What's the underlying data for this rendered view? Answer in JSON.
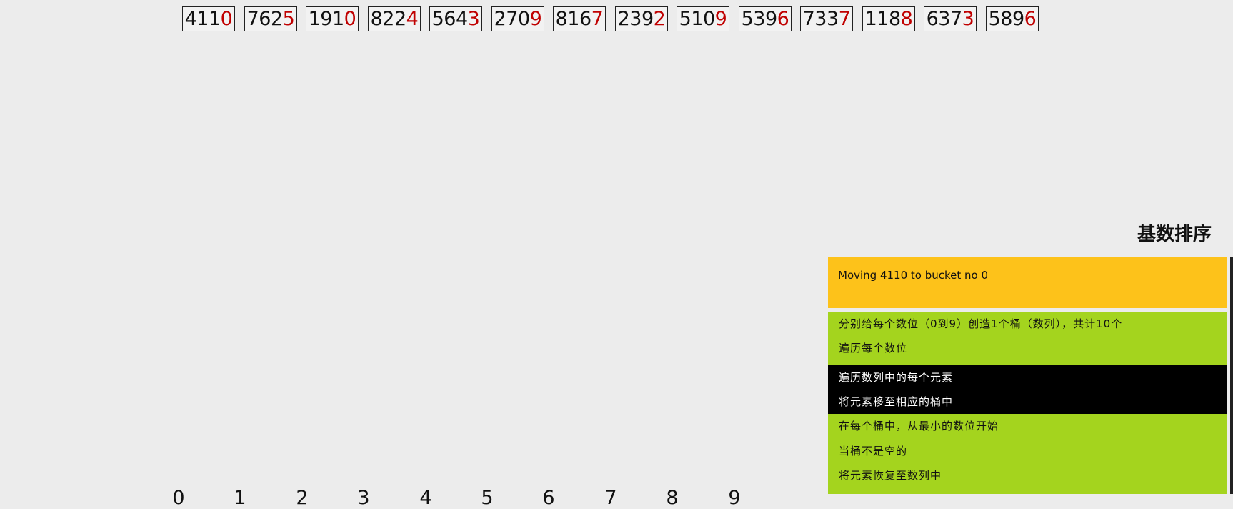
{
  "array": [
    {
      "prefix": "411",
      "digit": "0"
    },
    {
      "prefix": "762",
      "digit": "5"
    },
    {
      "prefix": "191",
      "digit": "0"
    },
    {
      "prefix": "822",
      "digit": "4"
    },
    {
      "prefix": "564",
      "digit": "3"
    },
    {
      "prefix": "270",
      "digit": "9"
    },
    {
      "prefix": "816",
      "digit": "7"
    },
    {
      "prefix": "239",
      "digit": "2"
    },
    {
      "prefix": "510",
      "digit": "9"
    },
    {
      "prefix": "539",
      "digit": "6"
    },
    {
      "prefix": "733",
      "digit": "7"
    },
    {
      "prefix": "118",
      "digit": "8"
    },
    {
      "prefix": "637",
      "digit": "3"
    },
    {
      "prefix": "589",
      "digit": "6"
    }
  ],
  "buckets": [
    "0",
    "1",
    "2",
    "3",
    "4",
    "5",
    "6",
    "7",
    "8",
    "9"
  ],
  "title": "基数排序",
  "status": "Moving 4110 to bucket no 0",
  "pseudocode": [
    {
      "text": "分别给每个数位（0到9）创造1个桶（数列），共计10个",
      "highlighted": false
    },
    {
      "text": "遍历每个数位",
      "highlighted": false
    },
    {
      "text": "遍历数列中的每个元素",
      "highlighted": true
    },
    {
      "text": "将元素移至相应的桶中",
      "highlighted": true
    },
    {
      "text": "在每个桶中，从最小的数位开始",
      "highlighted": false
    },
    {
      "text": "当桶不是空的",
      "highlighted": false
    },
    {
      "text": "将元素恢复至数列中",
      "highlighted": false
    }
  ],
  "colors": {
    "background": "#ececec",
    "current_digit": "#c00000",
    "status_panel": "#fdc21a",
    "pseudocode_panel": "#a4d41e",
    "highlight_line": "#000000"
  }
}
